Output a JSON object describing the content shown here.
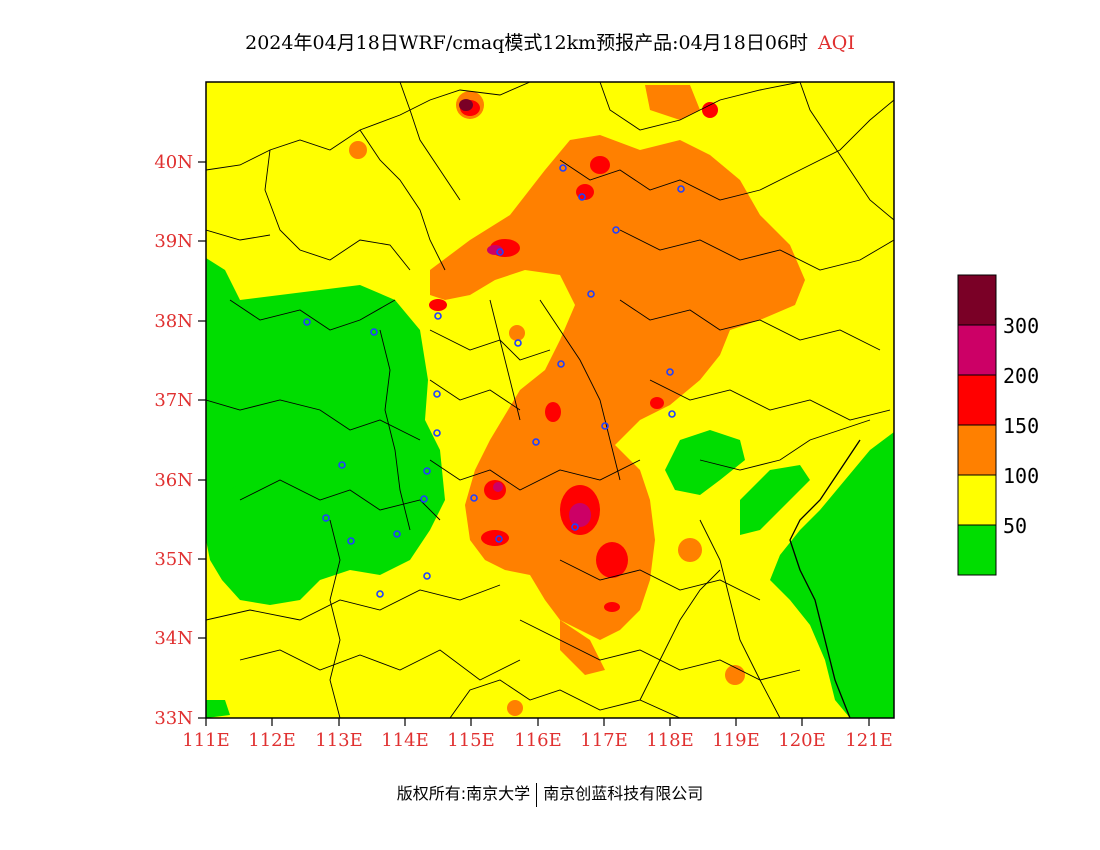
{
  "title": {
    "text": "2024年04月18日WRF/cmaq模式12km预报产品:04月18日06时",
    "variable": "AQI"
  },
  "axes": {
    "lat_labels": [
      "40N",
      "39N",
      "38N",
      "37N",
      "36N",
      "35N",
      "34N",
      "33N"
    ],
    "lon_labels": [
      "111E",
      "112E",
      "113E",
      "114E",
      "115E",
      "116E",
      "117E",
      "118E",
      "119E",
      "120E",
      "121E"
    ]
  },
  "colorbar": {
    "labels": [
      "300",
      "200",
      "150",
      "100",
      "50"
    ],
    "colors": [
      "#7a0026",
      "#cc0066",
      "#ff0000",
      "#ff8000",
      "#ffff00",
      "#00dd00"
    ]
  },
  "footer": {
    "left": "版权所有:南京大学",
    "right": "南京创蓝科技有限公司"
  }
}
